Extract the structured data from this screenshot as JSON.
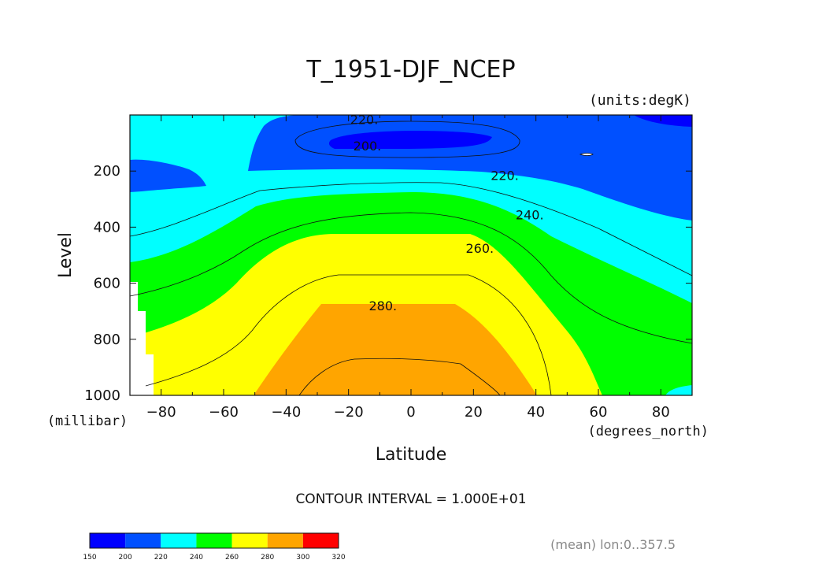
{
  "chart_data": {
    "type": "contour",
    "title": "T_1951-DJF_NCEP",
    "units_label": "(units:degK)",
    "xlabel": "Latitude",
    "x_units_label": "(degrees_north)",
    "ylabel": "Level",
    "y_units_label": "(millibar)",
    "xlim": [
      -90,
      90
    ],
    "ylim": [
      1000,
      0
    ],
    "x_ticks": [
      -80,
      -60,
      -40,
      -20,
      0,
      20,
      40,
      60,
      80
    ],
    "y_ticks": [
      1000,
      800,
      600,
      400,
      200
    ],
    "contour_interval_text": "CONTOUR INTERVAL = 1.000E+01",
    "contour_labels": [
      {
        "text": "220.",
        "lat": -15,
        "level": 15
      },
      {
        "text": "200.",
        "lat": -14,
        "level": 110
      },
      {
        "text": "220.",
        "lat": 30,
        "level": 215
      },
      {
        "text": "240.",
        "lat": 38,
        "level": 355
      },
      {
        "text": "260.",
        "lat": 22,
        "level": 475
      },
      {
        "text": "280.",
        "lat": -9,
        "level": 680
      }
    ],
    "bands": [
      {
        "label": "200-210",
        "color": "#0050ff"
      },
      {
        "label": "190-200",
        "color": "#0000ff"
      },
      {
        "label": "220-230",
        "color": "#00ffff"
      },
      {
        "label": "240-250",
        "color": "#00ff00"
      },
      {
        "label": "260-270",
        "color": "#ffff00"
      },
      {
        "label": "280-290",
        "color": "#ffa500"
      }
    ],
    "colorbar": {
      "ticks": [
        "150",
        "200",
        "220",
        "240",
        "260",
        "280",
        "300",
        "320"
      ],
      "colors": [
        "#0000ff",
        "#0050ff",
        "#00ffff",
        "#00ff00",
        "#ffff00",
        "#ffa500",
        "#ff0000"
      ]
    },
    "footnote": "(mean) lon:0..357.5"
  }
}
